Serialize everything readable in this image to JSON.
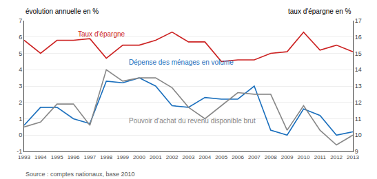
{
  "chart_data": {
    "type": "line",
    "x": [
      1993,
      1994,
      1995,
      1996,
      1997,
      1998,
      1999,
      2000,
      2001,
      2002,
      2003,
      2004,
      2005,
      2006,
      2007,
      2008,
      2009,
      2010,
      2011,
      2012,
      2013
    ],
    "series": [
      {
        "name": "Dépense des ménages en volume",
        "color": "#1a6fbd",
        "values": [
          0.6,
          1.7,
          1.7,
          1.0,
          0.7,
          3.3,
          3.2,
          3.5,
          3.0,
          1.8,
          1.7,
          2.3,
          2.2,
          2.2,
          3.0,
          0.3,
          0.0,
          1.6,
          1.2,
          0.0,
          0.2
        ]
      },
      {
        "name": "Pouvoir d'achat du revenu disponible brut",
        "color": "#888888",
        "values": [
          0.5,
          0.8,
          1.9,
          1.9,
          0.6,
          4.0,
          3.3,
          3.5,
          3.5,
          2.9,
          1.7,
          1.0,
          1.8,
          2.6,
          2.5,
          2.5,
          0.3,
          1.8,
          0.3,
          -0.6,
          0.0
        ]
      },
      {
        "name": "Taux d'épargne",
        "color": "#cc2222",
        "axis": "y2",
        "values": [
          15.8,
          15.0,
          15.8,
          15.8,
          15.9,
          14.7,
          15.5,
          15.5,
          15.8,
          16.3,
          15.7,
          15.7,
          14.5,
          14.6,
          14.6,
          15.0,
          15.1,
          16.3,
          15.2,
          15.5,
          15.1
        ]
      }
    ],
    "xlim": [
      1993,
      2013
    ],
    "xticks": [
      1993,
      1994,
      1995,
      1996,
      1997,
      1998,
      1999,
      2000,
      2001,
      2002,
      2003,
      2004,
      2005,
      2006,
      2007,
      2008,
      2009,
      2010,
      2011,
      2012,
      2013
    ],
    "ylim": [
      -1,
      7
    ],
    "yticks": [
      -1,
      0,
      1,
      2,
      3,
      4,
      5,
      6,
      7
    ],
    "y2lim": [
      9,
      17
    ],
    "y2ticks": [
      9,
      10,
      11,
      12,
      13,
      14,
      15,
      16,
      17
    ],
    "y_label": "évolution annuelle en %",
    "y2_label": "taux d'épargne en %",
    "source": "Source : comptes nationaux, base 2010",
    "grid": true
  }
}
